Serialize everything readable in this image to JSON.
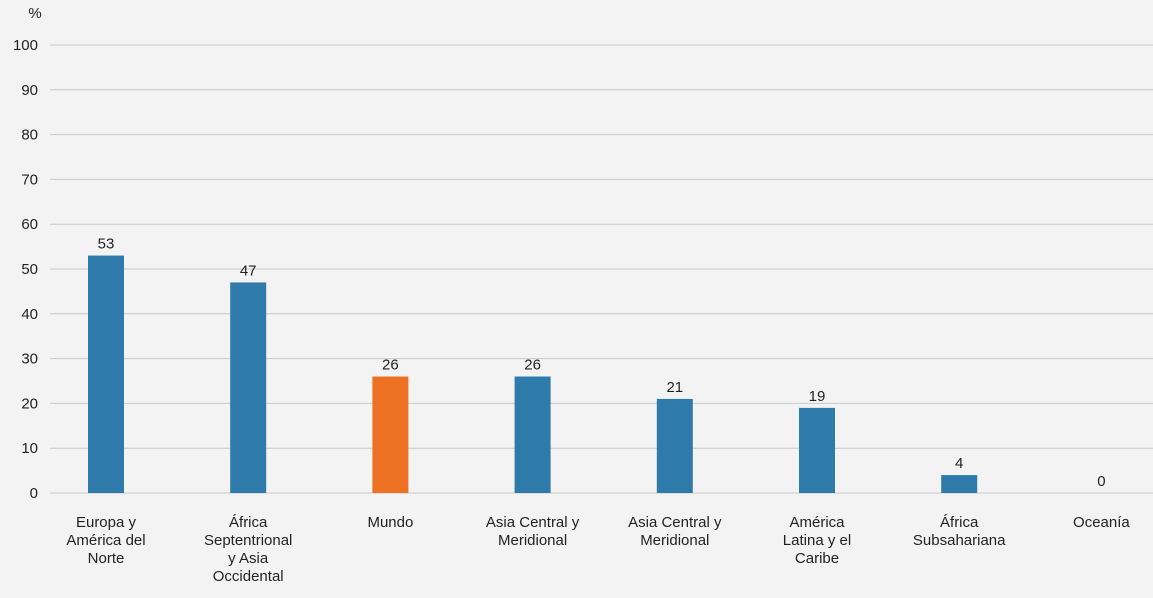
{
  "chart_data": {
    "type": "bar",
    "y_unit": "%",
    "ylim": [
      0,
      100
    ],
    "yticks": [
      0,
      10,
      20,
      30,
      40,
      50,
      60,
      70,
      80,
      90,
      100
    ],
    "grid": true,
    "categories": [
      "Europa y América del Norte",
      "África Septentrional y Asia Occidental",
      "Mundo",
      "Asia Central y Meridional",
      "Asia Central y Meridional",
      "América Latina y el Caribe",
      "África Subsahariana",
      "Oceanía"
    ],
    "category_lines": [
      [
        "Europa y",
        "América del",
        "Norte"
      ],
      [
        "África",
        "Septentrional",
        "y Asia",
        "Occidental"
      ],
      [
        "Mundo"
      ],
      [
        "Asia Central y",
        "Meridional"
      ],
      [
        "Asia Central y",
        "Meridional"
      ],
      [
        "América",
        "Latina y el",
        "Caribe"
      ],
      [
        "África",
        "Subsahariana"
      ],
      [
        "Oceanía"
      ]
    ],
    "values": [
      53,
      47,
      26,
      26,
      21,
      19,
      4,
      0
    ],
    "bar_colors": [
      "#2e7aaa",
      "#2e7aaa",
      "#ee7023",
      "#2e7aaa",
      "#2e7aaa",
      "#2e7aaa",
      "#2e7aaa",
      "#2e7aaa"
    ],
    "colors": {
      "default": "#2e7aaa",
      "highlight": "#ee7023",
      "grid": "#c8c8c8",
      "background": "#f3f3f3"
    }
  }
}
